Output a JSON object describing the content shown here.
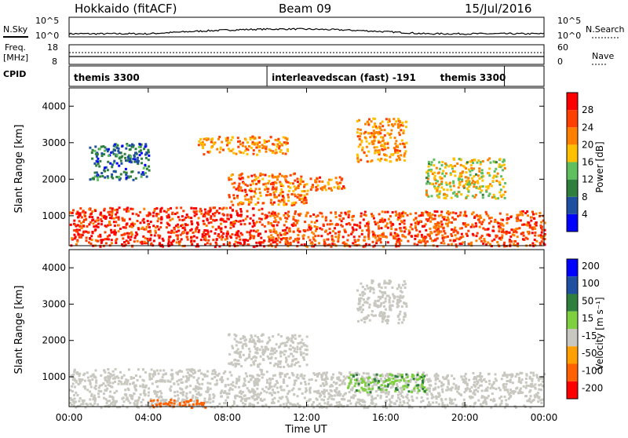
{
  "header": {
    "station": "Hokkaido (fitACF)",
    "beam": "Beam 09",
    "date": "15/Jul/2016"
  },
  "top_panel": {
    "left_labels": [
      "N.Sky",
      "Freq.",
      "[MHz]",
      "CPID"
    ],
    "right_labels": [
      "N.Search",
      "Nave"
    ],
    "left_ticks": [
      "10^5",
      "10^0",
      "18",
      "8"
    ],
    "right_ticks": [
      "10^5",
      "10^0",
      "60",
      "0"
    ],
    "cpid_segments": [
      "themis 3300",
      "interleavedscan (fast) -191",
      "themis 3300"
    ],
    "cpid_segment_hours": [
      [
        0,
        10
      ],
      [
        10,
        22
      ],
      [
        22,
        24
      ]
    ]
  },
  "chart_data": [
    {
      "type": "heatmap",
      "name": "power",
      "ylabel": "Slant Range [km]",
      "xlabel": "Time UT",
      "xlim": [
        0,
        24
      ],
      "ylim": [
        180,
        4500
      ],
      "x_tick_labels": [
        "00:00",
        "04:00",
        "08:00",
        "12:00",
        "16:00",
        "20:00",
        "00:00"
      ],
      "x_tick_hours": [
        0,
        4,
        8,
        12,
        16,
        20,
        24
      ],
      "y_ticks": [
        1000,
        2000,
        3000,
        4000
      ],
      "colorbar": {
        "label": "Power [dB]",
        "tick_labels": [
          "4",
          "8",
          "12",
          "16",
          "20",
          "24",
          "28"
        ],
        "range": [
          0,
          30
        ],
        "colors": [
          "#0000ff",
          "#1e4fa0",
          "#2f7f3f",
          "#5fbf5f",
          "#ffc000",
          "#ff8000",
          "#ff4000",
          "#ff0000"
        ]
      },
      "echo_regions": [
        {
          "t": [
            0,
            10
          ],
          "r": [
            180,
            1250
          ],
          "level": 26
        },
        {
          "t": [
            10,
            24
          ],
          "r": [
            180,
            1150
          ],
          "level": 24
        },
        {
          "t": [
            8,
            12
          ],
          "r": [
            1300,
            2200
          ],
          "level": 22
        },
        {
          "t": [
            12,
            14
          ],
          "r": [
            1700,
            2100
          ],
          "level": 22
        },
        {
          "t": [
            14.5,
            17
          ],
          "r": [
            2500,
            3700
          ],
          "level": 20
        },
        {
          "t": [
            6.5,
            11
          ],
          "r": [
            2700,
            3200
          ],
          "level": 20
        },
        {
          "t": [
            18,
            22
          ],
          "r": [
            1500,
            2600
          ],
          "level": 16
        },
        {
          "t": [
            1,
            4
          ],
          "r": [
            2000,
            3000
          ],
          "level": 8
        }
      ]
    },
    {
      "type": "heatmap",
      "name": "velocity",
      "ylabel": "Slant Range [km]",
      "xlabel": "Time UT",
      "xlim": [
        0,
        24
      ],
      "ylim": [
        180,
        4500
      ],
      "x_tick_labels": [
        "00:00",
        "04:00",
        "08:00",
        "12:00",
        "16:00",
        "20:00",
        "00:00"
      ],
      "x_tick_hours": [
        0,
        4,
        8,
        12,
        16,
        20,
        24
      ],
      "y_ticks": [
        1000,
        2000,
        3000,
        4000
      ],
      "colorbar": {
        "label": "Velocity [m s⁻¹]",
        "tick_labels": [
          "200",
          "100",
          "50",
          "15",
          "-15",
          "-50",
          "-100",
          "-200"
        ],
        "colors": [
          "#0000ff",
          "#1e4fa0",
          "#2f7f3f",
          "#7fd040",
          "#c8c8c0",
          "#ffa000",
          "#ff6000",
          "#ff0000"
        ]
      },
      "echo_regions": [
        {
          "t": [
            0,
            10
          ],
          "r": [
            180,
            1250
          ],
          "level": 0
        },
        {
          "t": [
            10,
            24
          ],
          "r": [
            180,
            1150
          ],
          "level": 0
        },
        {
          "t": [
            14,
            18
          ],
          "r": [
            600,
            1100
          ],
          "level": 30
        },
        {
          "t": [
            8,
            12
          ],
          "r": [
            1300,
            2200
          ],
          "level": 0
        },
        {
          "t": [
            14.5,
            17
          ],
          "r": [
            2500,
            3700
          ],
          "level": 0
        },
        {
          "t": [
            4,
            7
          ],
          "r": [
            180,
            400
          ],
          "level": -40
        }
      ]
    }
  ],
  "footer": {
    "xlabel": "Time UT"
  }
}
